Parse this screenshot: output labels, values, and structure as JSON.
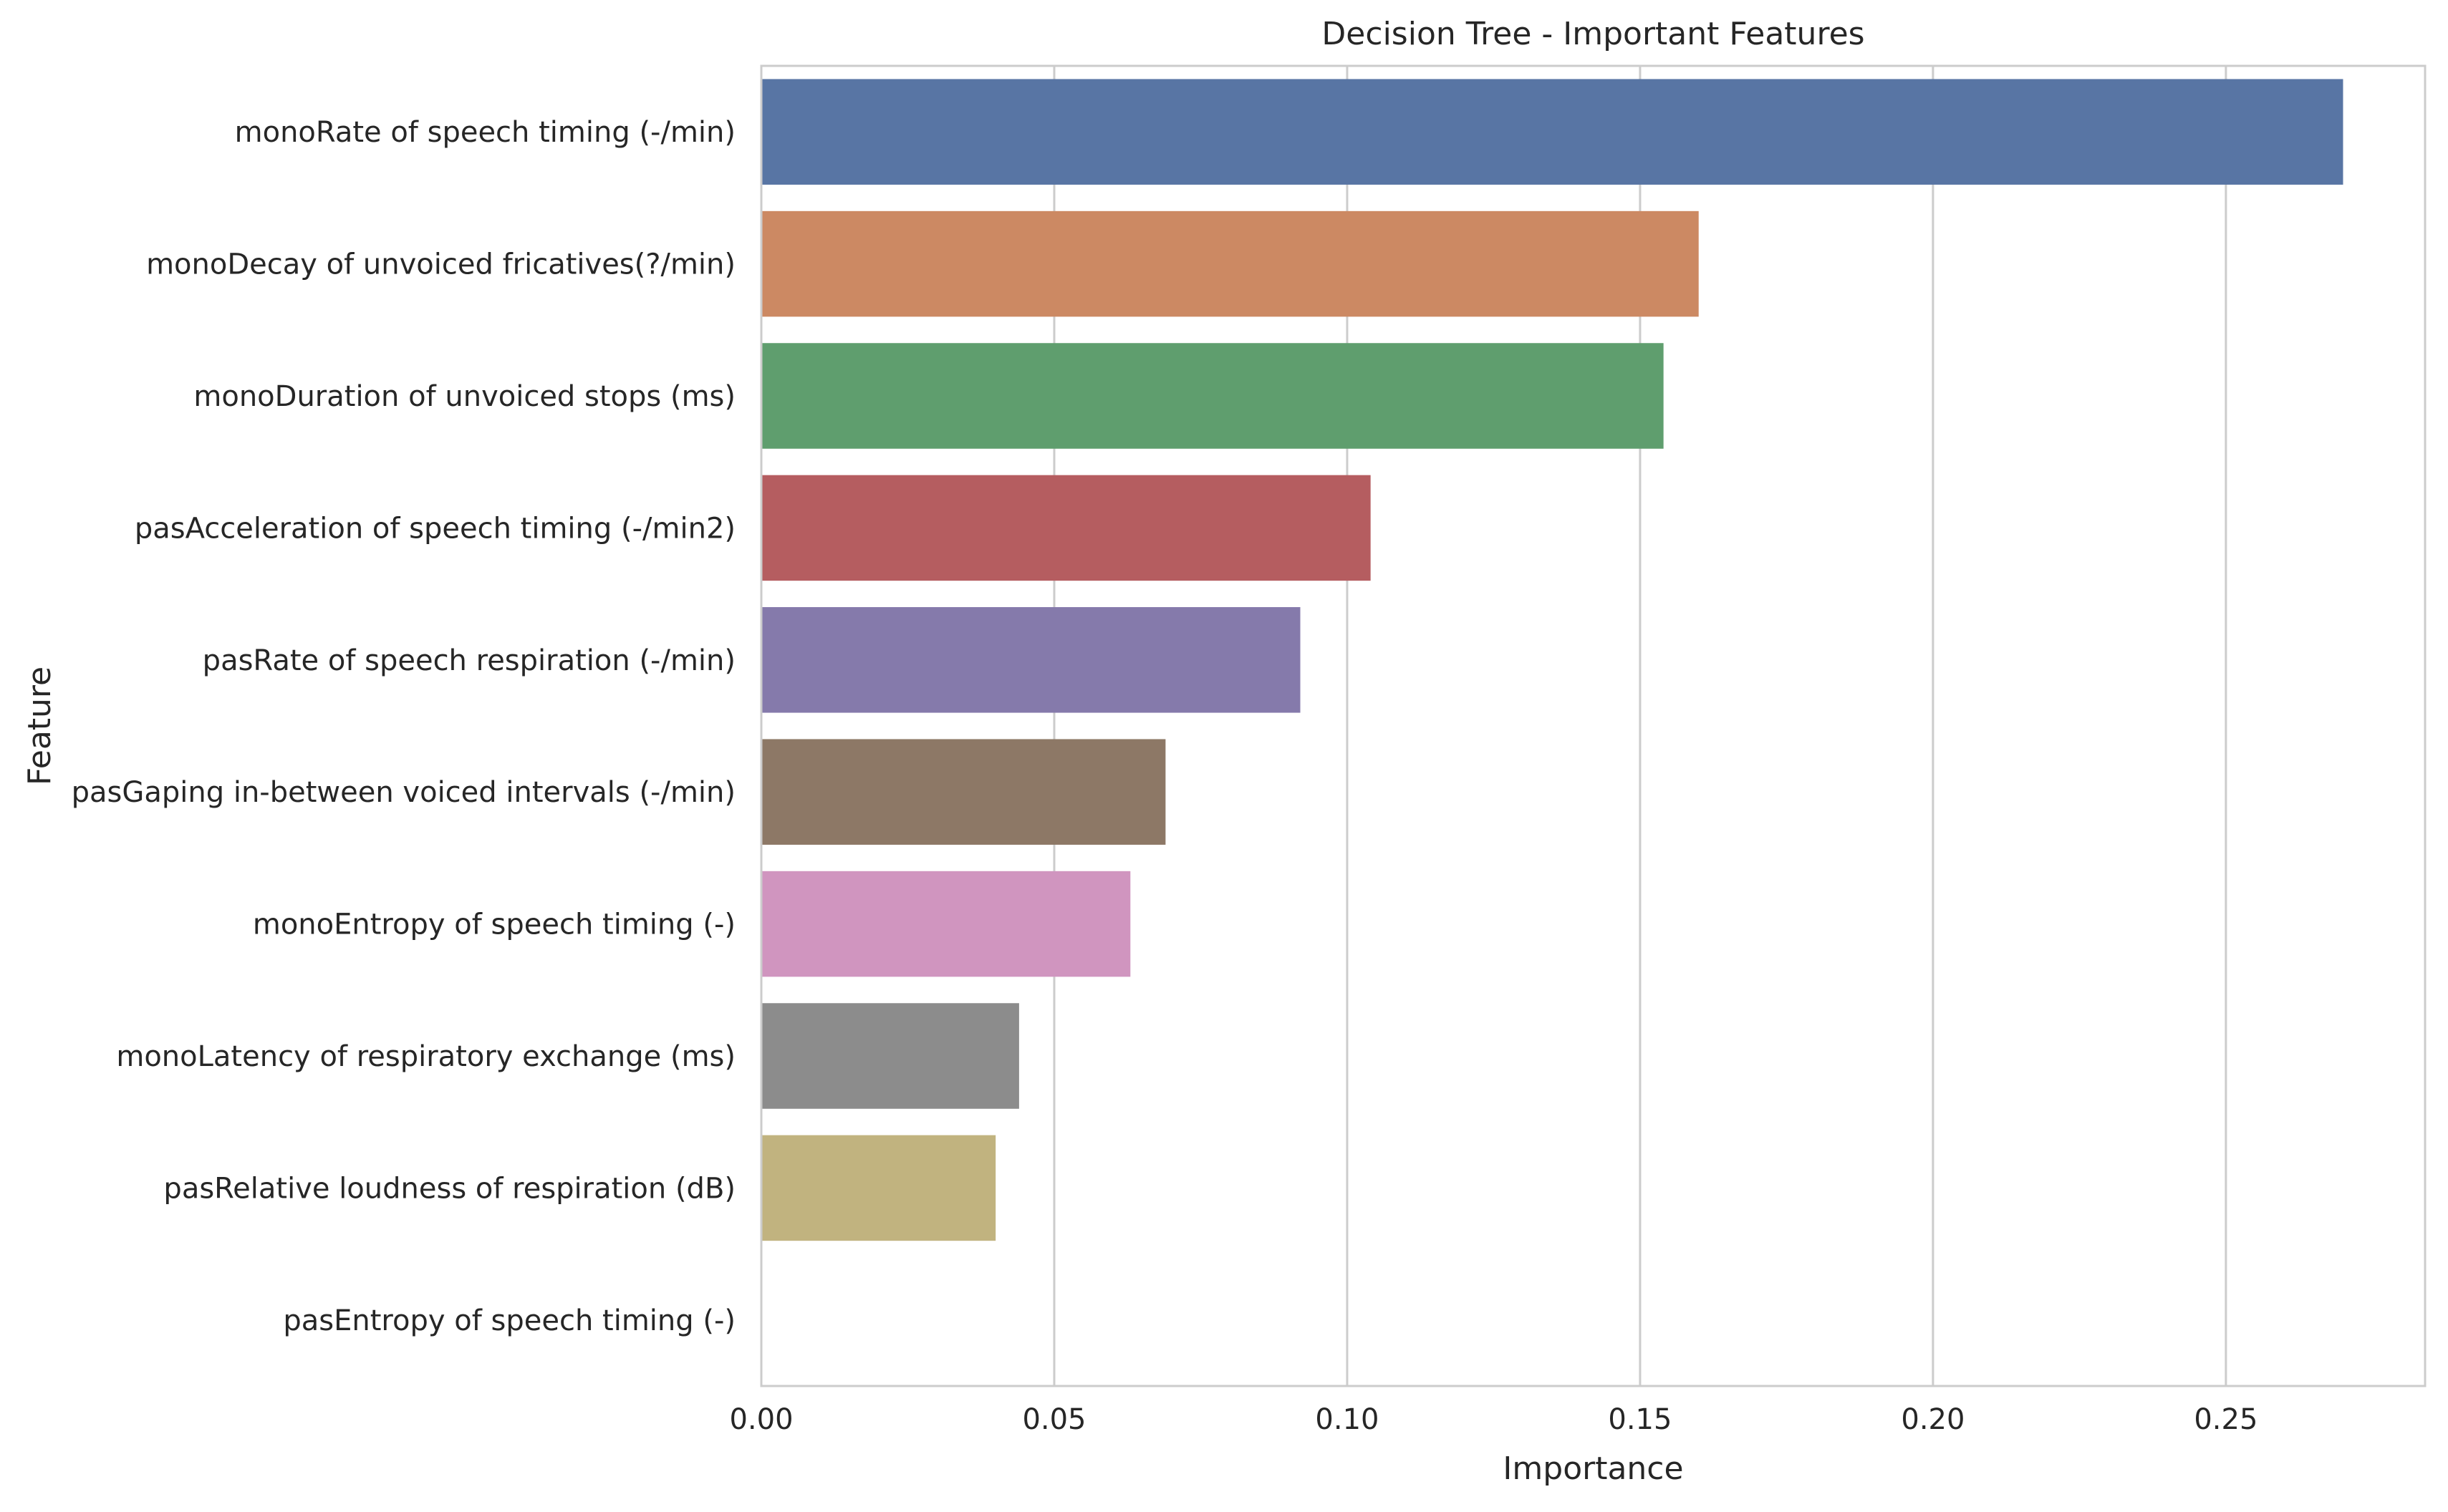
{
  "chart_data": {
    "type": "bar",
    "orientation": "horizontal",
    "title": "Decision Tree - Important Features",
    "xlabel": "Importance",
    "ylabel": "Feature",
    "xlim": [
      0,
      0.284
    ],
    "xticks": [
      0.0,
      0.05,
      0.1,
      0.15,
      0.2,
      0.25
    ],
    "xtick_labels": [
      "0.00",
      "0.05",
      "0.10",
      "0.15",
      "0.20",
      "0.25"
    ],
    "grid": "vertical",
    "categories": [
      "monoRate of speech timing (-/min)",
      "monoDecay of unvoiced fricatives(?/min)",
      "monoDuration of unvoiced stops (ms)",
      "pasAcceleration of speech timing (-/min2)",
      "pasRate of speech respiration (-/min)",
      "pasGaping in-between voiced intervals (-/min)",
      "monoEntropy of speech timing (-)",
      "monoLatency of respiratory exchange (ms)",
      "pasRelative loudness of respiration (dB)",
      "pasEntropy of speech timing (-)"
    ],
    "values": [
      0.27,
      0.16,
      0.154,
      0.104,
      0.092,
      0.069,
      0.063,
      0.044,
      0.04,
      0.0
    ],
    "colors": [
      "#5875a4",
      "#cc8963",
      "#5f9e6e",
      "#b55d60",
      "#857aab",
      "#8d7866",
      "#d095bf",
      "#8c8c8c",
      "#c1b37f",
      "#64b5cd"
    ]
  }
}
